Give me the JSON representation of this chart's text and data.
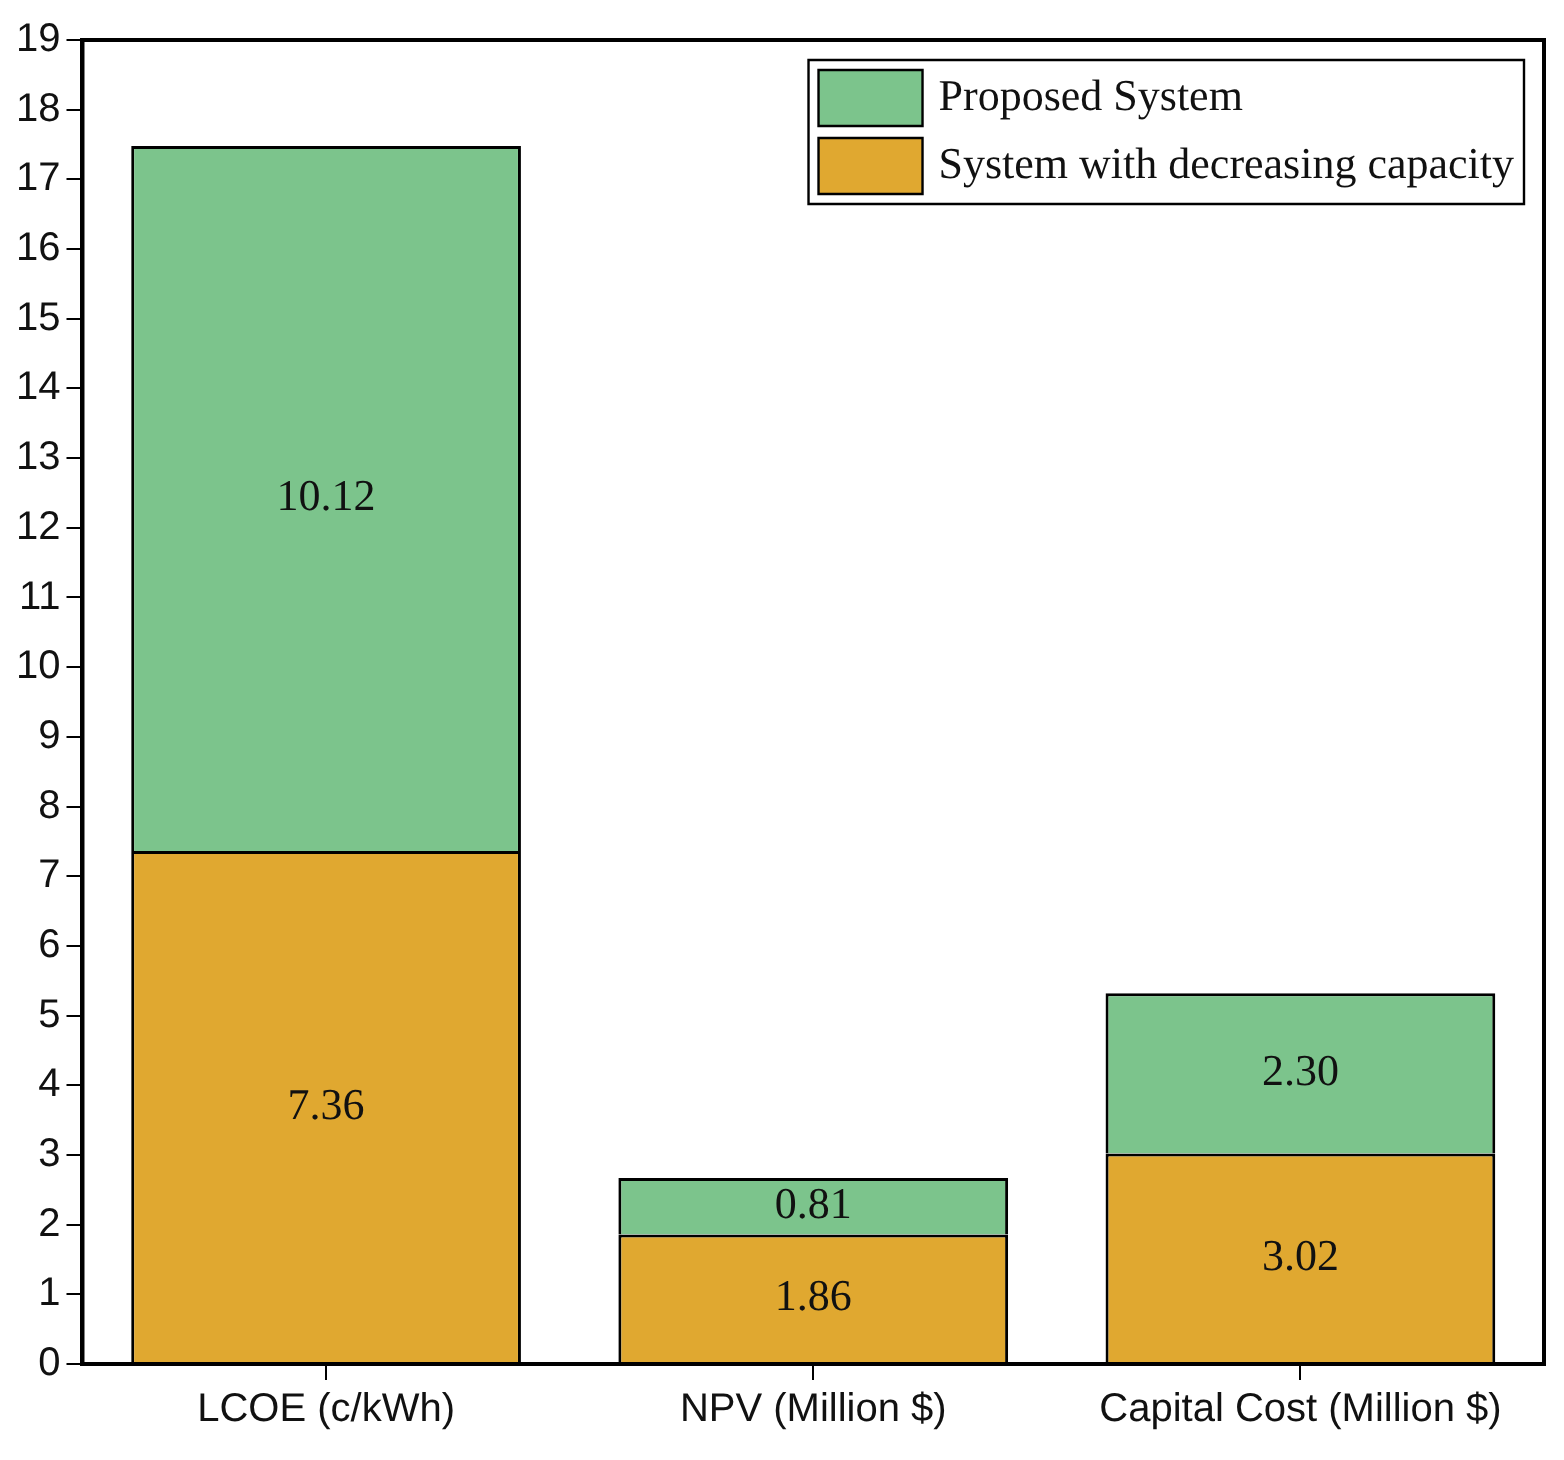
{
  "chart_data": {
    "type": "bar",
    "stacked": true,
    "categories": [
      "LCOE (c/kWh)",
      "NPV (Million $)",
      "Capital Cost (Million $)"
    ],
    "series": [
      {
        "name": "System with decreasing capacity",
        "color": "#e0a830",
        "values": [
          7.36,
          1.86,
          3.02
        ]
      },
      {
        "name": "Proposed System",
        "color": "#7cc48c",
        "values": [
          10.12,
          0.81,
          2.3
        ]
      }
    ],
    "value_labels": [
      [
        "7.36",
        "1.86",
        "3.02"
      ],
      [
        "10.12",
        "0.81",
        "2.30"
      ]
    ],
    "ylim": [
      0,
      19
    ],
    "yticks": [
      0,
      1,
      2,
      3,
      4,
      5,
      6,
      7,
      8,
      9,
      10,
      11,
      12,
      13,
      14,
      15,
      16,
      17,
      18,
      19
    ],
    "grid": false,
    "legend": "top right"
  }
}
